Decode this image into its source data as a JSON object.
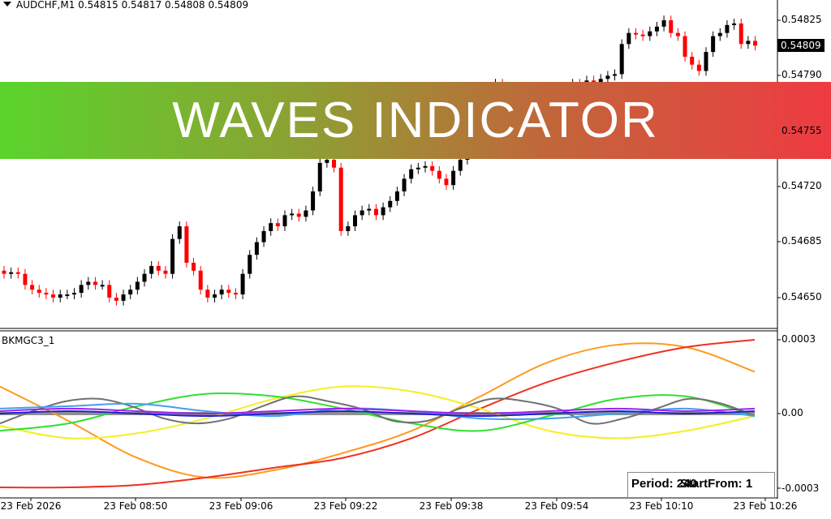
{
  "header": {
    "symbol_line": "AUDCHF,M1  0.54815 0.54817 0.54808 0.54809"
  },
  "banner": {
    "title": "WAVES INDICATOR",
    "gradient_from": "#5ad42c",
    "gradient_to": "#ef3a42"
  },
  "price_axis": {
    "labels": [
      "0.54825",
      "0.54790",
      "0.54755",
      "0.54720",
      "0.54685",
      "0.54650"
    ],
    "current_price": "0.54809"
  },
  "time_axis": {
    "labels": [
      "23 Feb 2026",
      "23 Feb 08:50",
      "23 Feb 09:06",
      "23 Feb 09:22",
      "23 Feb 09:38",
      "23 Feb 09:54",
      "23 Feb 10:10",
      "23 Feb 10:26"
    ]
  },
  "candles": {
    "bull_color": "#000000",
    "bear_color": "#ff0000",
    "closes": [
      0.54665,
      0.54666,
      0.54665,
      0.54658,
      0.54655,
      0.54653,
      0.54652,
      0.5465,
      0.54652,
      0.54652,
      0.54653,
      0.54658,
      0.5466,
      0.54658,
      0.54658,
      0.5465,
      0.54648,
      0.54652,
      0.54655,
      0.5466,
      0.54665,
      0.5467,
      0.54667,
      0.54665,
      0.54687,
      0.54695,
      0.54672,
      0.54667,
      0.54655,
      0.5465,
      0.54652,
      0.54655,
      0.54653,
      0.54652,
      0.54665,
      0.54677,
      0.54685,
      0.54692,
      0.54697,
      0.54695,
      0.54702,
      0.54703,
      0.54701,
      0.54705,
      0.54717,
      0.54735,
      0.54737,
      0.54732,
      0.54692,
      0.54695,
      0.54702,
      0.54705,
      0.54706,
      0.54702,
      0.54707,
      0.54711,
      0.54717,
      0.54725,
      0.54731,
      0.54732,
      0.54733,
      0.5473,
      0.54725,
      0.54721,
      0.5473,
      0.54737,
      0.54745,
      0.54757,
      0.54765,
      0.54772,
      0.54785,
      0.54782,
      0.54777,
      0.54775,
      0.54773,
      0.54772,
      0.54776,
      0.54778,
      0.54781,
      0.54782,
      0.54783,
      0.54785,
      0.54782,
      0.54787,
      0.54786,
      0.54788,
      0.5479,
      0.54791,
      0.5481,
      0.54817,
      0.54816,
      0.54815,
      0.54818,
      0.54821,
      0.54825,
      0.54817,
      0.54815,
      0.54802,
      0.54797,
      0.54793,
      0.54805,
      0.54815,
      0.54817,
      0.54822,
      0.54823,
      0.5481,
      0.54812,
      0.54809
    ]
  },
  "indicator": {
    "name": "BKMGC3_1",
    "axis_labels": [
      "0.0003",
      "0.00",
      "-0.0003"
    ],
    "period_label": "Period: 240",
    "start_label": "StartFrom: 1",
    "series": [
      {
        "color": "#ff9a1a",
        "values": [
          0.00011,
          -3e-05,
          -0.00018,
          -0.00026,
          -0.00023,
          -0.00016,
          -7e-05,
          7e-05,
          0.00021,
          0.00028,
          0.00027,
          0.00017
        ]
      },
      {
        "color": "#f03020",
        "values": [
          -0.0003,
          -0.0003,
          -0.00029,
          -0.00026,
          -0.00022,
          -0.00018,
          -0.0001,
          2e-05,
          0.00013,
          0.00021,
          0.00027,
          0.0003
        ]
      },
      {
        "color": "#f5ef20",
        "values": [
          -5e-05,
          -0.0001,
          -8e-05,
          -2e-05,
          6e-05,
          0.00011,
          9e-05,
          2e-05,
          -7e-05,
          -0.0001,
          -7e-05,
          -1e-05
        ]
      },
      {
        "color": "#30e030",
        "values": [
          -7e-05,
          -4e-05,
          3e-05,
          8e-05,
          7e-05,
          2e-05,
          -4e-05,
          -7e-05,
          -1e-05,
          6e-05,
          7e-05,
          -1e-05
        ]
      },
      {
        "color": "#707070",
        "values": [
          -4e-05,
          1e-05,
          5e-05,
          6e-05,
          3e-05,
          -2e-05,
          -4e-05,
          -2e-05,
          3e-05,
          7e-05,
          5e-05,
          2e-05,
          -3e-05,
          -3e-05,
          2e-05,
          6e-05,
          5e-05,
          2e-05,
          -4e-05,
          -2e-05,
          2e-05,
          6e-05,
          4e-05,
          -1e-05
        ]
      },
      {
        "color": "#40a0f0",
        "values": [
          2e-05,
          3e-05,
          4e-05,
          1e-05,
          -1e-05,
          2e-05,
          1e-05,
          -2e-05,
          -2e-05,
          0.0,
          2e-05,
          -1e-05
        ]
      },
      {
        "color": "#2020d0",
        "values": [
          0.0,
          1e-05,
          0.0,
          -1e-05,
          0.0,
          1e-05,
          0.0,
          -1e-05,
          0.0,
          1e-05,
          0.0,
          1e-05
        ]
      },
      {
        "color": "#a020f0",
        "values": [
          1e-05,
          2e-05,
          1e-05,
          0.0,
          1e-05,
          2e-05,
          1e-05,
          0.0,
          1e-05,
          2e-05,
          1e-05,
          2e-05
        ]
      }
    ]
  }
}
